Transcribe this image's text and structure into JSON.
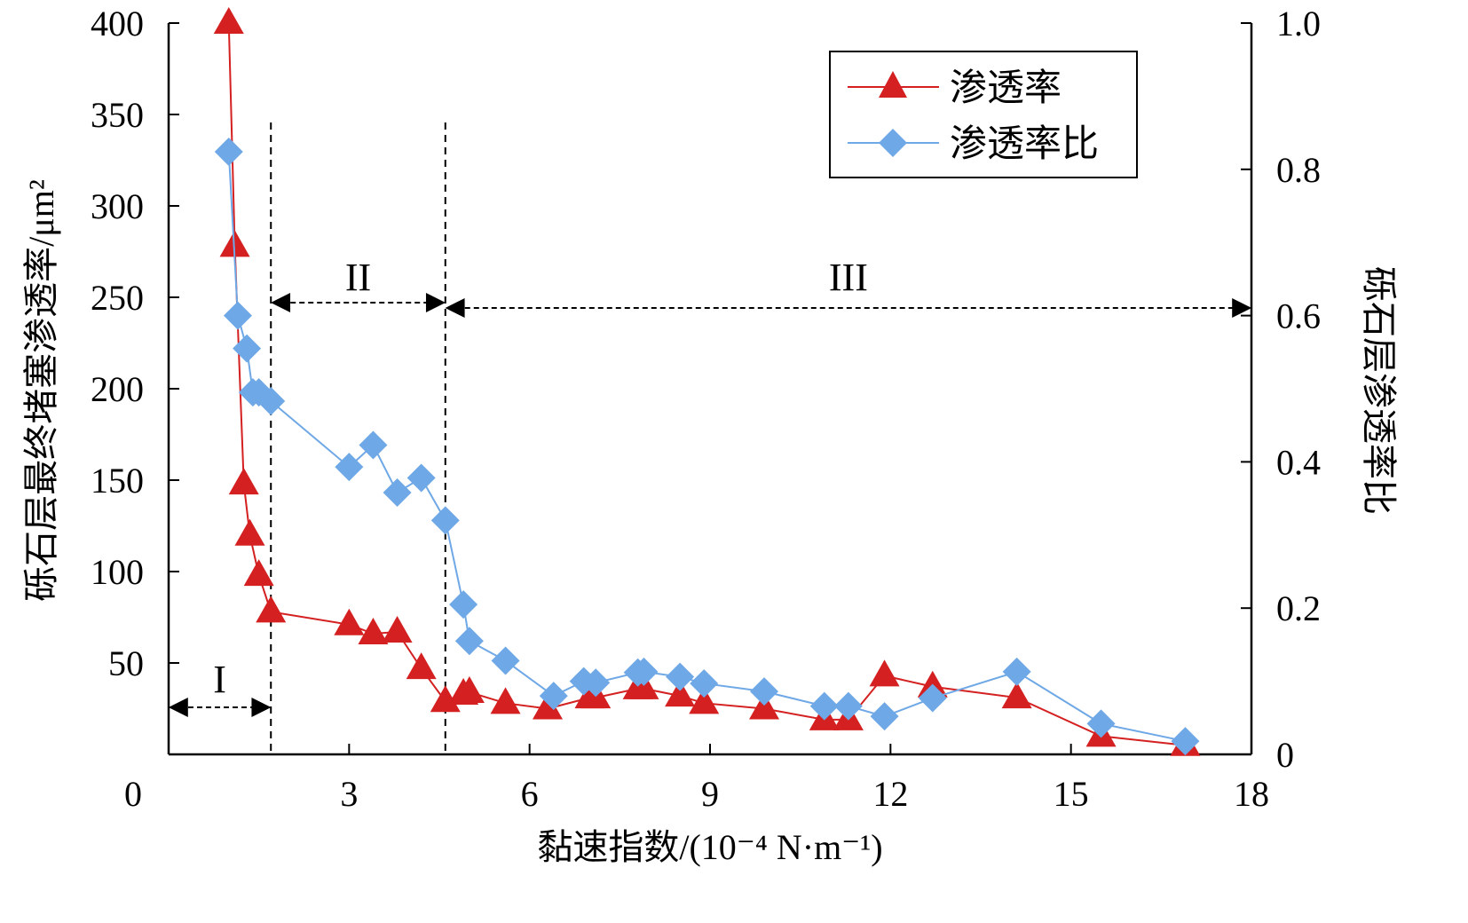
{
  "chart_data": {
    "type": "line",
    "title": "",
    "xlabel": "黏速指数/(10⁻⁴ N·m⁻¹)",
    "ylabel_left": "砾石层最终堵塞渗透率/μm²",
    "ylabel_right": "砾石层渗透率比",
    "xlim": [
      0,
      18
    ],
    "ylim_left": [
      0,
      400
    ],
    "ylim_right": [
      0,
      1.0
    ],
    "x_ticks": [
      "0",
      "3",
      "6",
      "9",
      "12",
      "15",
      "18"
    ],
    "y_left_ticks": [
      "50",
      "100",
      "150",
      "200",
      "250",
      "300",
      "350",
      "400"
    ],
    "y_right_ticks": [
      "0",
      "0.2",
      "0.4",
      "0.6",
      "0.8",
      "1.0"
    ],
    "grid": false,
    "legend_position": "top-right",
    "colors": {
      "permeability": "#d42020",
      "ratio": "#6fa8e6"
    },
    "series": [
      {
        "name": "渗透率",
        "axis": "left",
        "marker": "triangle",
        "x": [
          1.0,
          1.1,
          1.25,
          1.35,
          1.5,
          1.7,
          3.0,
          3.4,
          3.8,
          4.2,
          4.6,
          4.9,
          5.0,
          5.6,
          6.3,
          7.0,
          7.1,
          7.8,
          7.9,
          8.5,
          8.9,
          9.9,
          10.9,
          11.3,
          11.9,
          12.7,
          14.1,
          15.5,
          16.9
        ],
        "values": [
          400,
          278,
          148,
          120,
          98,
          78,
          71,
          66,
          67,
          47,
          29,
          33,
          34,
          28,
          25,
          31,
          31,
          36,
          36,
          32,
          28,
          25,
          19,
          19,
          43,
          37,
          31,
          10,
          5
        ]
      },
      {
        "name": "渗透率比",
        "axis": "right",
        "marker": "diamond",
        "x": [
          1.0,
          1.15,
          1.3,
          1.4,
          1.5,
          1.7,
          3.0,
          3.4,
          3.8,
          4.2,
          4.6,
          4.9,
          5.0,
          5.6,
          6.4,
          6.9,
          7.1,
          7.8,
          7.9,
          8.5,
          8.9,
          9.9,
          10.9,
          11.3,
          11.9,
          12.7,
          14.1,
          15.5,
          16.9
        ],
        "values": [
          0.824,
          0.6,
          0.555,
          0.495,
          0.495,
          0.483,
          0.393,
          0.423,
          0.358,
          0.378,
          0.32,
          0.205,
          0.155,
          0.128,
          0.08,
          0.1,
          0.098,
          0.112,
          0.113,
          0.106,
          0.097,
          0.086,
          0.066,
          0.066,
          0.052,
          0.077,
          0.113,
          0.042,
          0.018
        ]
      }
    ],
    "regions": [
      {
        "label": "I",
        "x_start": 0,
        "x_end": 1.7
      },
      {
        "label": "II",
        "x_start": 1.7,
        "x_end": 4.6
      },
      {
        "label": "III",
        "x_start": 4.6,
        "x_end": 18
      }
    ]
  }
}
